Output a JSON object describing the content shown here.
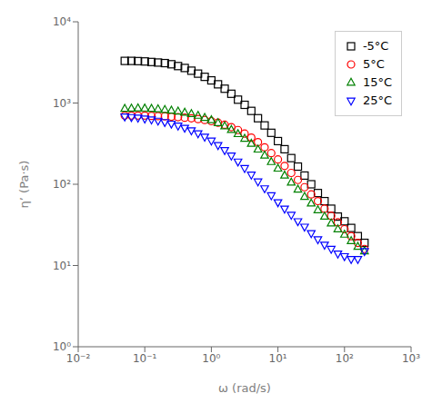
{
  "chart_data": {
    "type": "scatter",
    "xlabel": "ω (rad/s)",
    "ylabel": "η’ (Pa·s)",
    "log": true,
    "grid": false,
    "legend": "upper right",
    "xlim": [
      0.01,
      1000
    ],
    "ylim": [
      1,
      10000
    ],
    "xticks": [
      {
        "value": 0.01,
        "label": "10⁻²"
      },
      {
        "value": 0.1,
        "label": "10⁻¹"
      },
      {
        "value": 1,
        "label": "10⁰"
      },
      {
        "value": 10,
        "label": "10¹"
      },
      {
        "value": 100,
        "label": "10²"
      },
      {
        "value": 1000,
        "label": "10³"
      }
    ],
    "yticks": [
      {
        "value": 1,
        "label": "10⁰"
      },
      {
        "value": 10,
        "label": "10¹"
      },
      {
        "value": 100,
        "label": "10²"
      },
      {
        "value": 1000,
        "label": "10³"
      },
      {
        "value": 10000,
        "label": "10⁴"
      }
    ],
    "series": [
      {
        "name": "-5°C",
        "color": "black",
        "marker": "square",
        "x": [
          0.05,
          0.063,
          0.079,
          0.1,
          0.126,
          0.158,
          0.2,
          0.251,
          0.316,
          0.398,
          0.501,
          0.631,
          0.794,
          1.0,
          1.259,
          1.585,
          1.995,
          2.512,
          3.162,
          3.981,
          5.012,
          6.31,
          7.943,
          10.0,
          12.59,
          15.85,
          19.95,
          25.12,
          31.62,
          39.81,
          50.12,
          63.1,
          79.43,
          100.0,
          125.9,
          158.5,
          199.5
        ],
        "values": [
          3300,
          3300,
          3280,
          3250,
          3200,
          3150,
          3100,
          3000,
          2850,
          2700,
          2500,
          2300,
          2100,
          1900,
          1700,
          1500,
          1300,
          1100,
          950,
          800,
          650,
          530,
          430,
          340,
          270,
          210,
          165,
          128,
          100,
          78,
          62,
          50,
          40,
          35,
          29,
          23,
          19
        ]
      },
      {
        "name": "5°C",
        "color": "red",
        "marker": "circle",
        "x": [
          0.05,
          0.063,
          0.079,
          0.1,
          0.126,
          0.158,
          0.2,
          0.251,
          0.316,
          0.398,
          0.501,
          0.631,
          0.794,
          1.0,
          1.259,
          1.585,
          1.995,
          2.512,
          3.162,
          3.981,
          5.012,
          6.31,
          7.943,
          10.0,
          12.59,
          15.85,
          19.95,
          25.12,
          31.62,
          39.81,
          50.12,
          63.1,
          79.43,
          100.0,
          125.9,
          158.5,
          199.5
        ],
        "values": [
          700,
          700,
          700,
          700,
          695,
          690,
          685,
          678,
          670,
          660,
          648,
          635,
          618,
          598,
          572,
          540,
          505,
          465,
          420,
          375,
          330,
          285,
          242,
          202,
          168,
          138,
          113,
          92,
          75,
          62,
          50,
          41,
          34,
          28,
          23,
          19,
          16
        ]
      },
      {
        "name": "15°C",
        "color": "green",
        "marker": "triangle-up",
        "x": [
          0.05,
          0.063,
          0.079,
          0.1,
          0.126,
          0.158,
          0.2,
          0.251,
          0.316,
          0.398,
          0.501,
          0.631,
          0.794,
          1.0,
          1.259,
          1.585,
          1.995,
          2.512,
          3.162,
          3.981,
          5.012,
          6.31,
          7.943,
          10.0,
          12.59,
          15.85,
          19.95,
          25.12,
          31.62,
          39.81,
          50.12,
          63.1,
          79.43,
          100.0,
          125.9,
          158.5,
          199.5
        ],
        "values": [
          850,
          855,
          860,
          858,
          850,
          840,
          825,
          808,
          788,
          762,
          732,
          698,
          658,
          615,
          568,
          518,
          467,
          415,
          364,
          315,
          268,
          226,
          188,
          156,
          128,
          105,
          86,
          70,
          58,
          48,
          40,
          33,
          28,
          24,
          20,
          17,
          15
        ]
      },
      {
        "name": "25°C",
        "color": "blue",
        "marker": "triangle-down",
        "x": [
          0.05,
          0.063,
          0.079,
          0.1,
          0.126,
          0.158,
          0.2,
          0.251,
          0.316,
          0.398,
          0.501,
          0.631,
          0.794,
          1.0,
          1.259,
          1.585,
          1.995,
          2.512,
          3.162,
          3.981,
          5.012,
          6.31,
          7.943,
          10.0,
          12.59,
          15.85,
          19.95,
          25.12,
          31.62,
          39.81,
          50.12,
          63.1,
          79.43,
          100.0,
          125.9,
          158.5,
          199.5
        ],
        "values": [
          680,
          670,
          658,
          643,
          625,
          605,
          582,
          556,
          527,
          495,
          460,
          423,
          384,
          344,
          303,
          263,
          225,
          190,
          158,
          131,
          108,
          89,
          73,
          60,
          50,
          42,
          35,
          30,
          25,
          21,
          18,
          16,
          14,
          13,
          12,
          12,
          15
        ]
      }
    ]
  }
}
